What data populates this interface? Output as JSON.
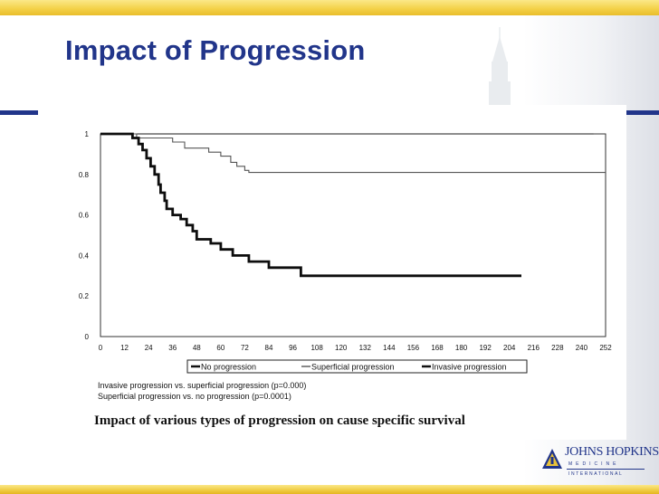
{
  "slide": {
    "title": "Impact of Progression",
    "caption": "Impact of various types of progression on cause specific survival",
    "notes": [
      "Invasive progression vs. superficial progression (p=0.000)",
      "Superficial progression vs. no progression (p=0.0001)"
    ],
    "logo": {
      "name": "JOHNS HOPKINS",
      "sub1": "MEDICINE",
      "sub2": "INTERNATIONAL"
    },
    "colors": {
      "title": "#21358a",
      "band": "#f4d24a",
      "rule": "#21358a"
    }
  },
  "chart_data": {
    "type": "line",
    "step": true,
    "title": "",
    "xlabel": "",
    "ylabel": "",
    "xlim": [
      0,
      252
    ],
    "ylim": [
      0,
      1
    ],
    "x_ticks": [
      0,
      12,
      24,
      36,
      48,
      60,
      72,
      84,
      96,
      108,
      120,
      132,
      144,
      156,
      168,
      180,
      192,
      204,
      216,
      228,
      240,
      252
    ],
    "y_ticks": [
      0,
      0.2,
      0.4,
      0.6,
      0.8,
      1
    ],
    "y_tick_labels": [
      "0",
      "0.2",
      "0.4",
      "0.6",
      "0.8",
      "1"
    ],
    "grid": false,
    "legend_position": "bottom",
    "legend": [
      "No progression",
      "Superficial progression",
      "Invasive progression"
    ],
    "series": [
      {
        "name": "No progression",
        "style": "thin",
        "points": [
          [
            0,
            1
          ],
          [
            246,
            1
          ]
        ]
      },
      {
        "name": "Superficial progression",
        "style": "thin",
        "points": [
          [
            0,
            1
          ],
          [
            18,
            1
          ],
          [
            18,
            0.98
          ],
          [
            36,
            0.98
          ],
          [
            36,
            0.96
          ],
          [
            42,
            0.96
          ],
          [
            42,
            0.93
          ],
          [
            54,
            0.93
          ],
          [
            54,
            0.91
          ],
          [
            60,
            0.91
          ],
          [
            60,
            0.89
          ],
          [
            65,
            0.89
          ],
          [
            65,
            0.86
          ],
          [
            68,
            0.86
          ],
          [
            68,
            0.84
          ],
          [
            72,
            0.84
          ],
          [
            72,
            0.82
          ],
          [
            74,
            0.82
          ],
          [
            74,
            0.81
          ],
          [
            252,
            0.81
          ]
        ]
      },
      {
        "name": "Invasive progression",
        "style": "thick",
        "points": [
          [
            0,
            1
          ],
          [
            16,
            1
          ],
          [
            16,
            0.98
          ],
          [
            19,
            0.98
          ],
          [
            19,
            0.95
          ],
          [
            21,
            0.95
          ],
          [
            21,
            0.92
          ],
          [
            23,
            0.92
          ],
          [
            23,
            0.88
          ],
          [
            25,
            0.88
          ],
          [
            25,
            0.84
          ],
          [
            27,
            0.84
          ],
          [
            27,
            0.8
          ],
          [
            29,
            0.8
          ],
          [
            29,
            0.75
          ],
          [
            30,
            0.75
          ],
          [
            30,
            0.71
          ],
          [
            32,
            0.71
          ],
          [
            32,
            0.67
          ],
          [
            33,
            0.67
          ],
          [
            33,
            0.63
          ],
          [
            36,
            0.63
          ],
          [
            36,
            0.6
          ],
          [
            40,
            0.6
          ],
          [
            40,
            0.58
          ],
          [
            43,
            0.58
          ],
          [
            43,
            0.55
          ],
          [
            46,
            0.55
          ],
          [
            46,
            0.52
          ],
          [
            48,
            0.52
          ],
          [
            48,
            0.48
          ],
          [
            55,
            0.48
          ],
          [
            55,
            0.46
          ],
          [
            60,
            0.46
          ],
          [
            60,
            0.43
          ],
          [
            66,
            0.43
          ],
          [
            66,
            0.4
          ],
          [
            74,
            0.4
          ],
          [
            74,
            0.37
          ],
          [
            84,
            0.37
          ],
          [
            84,
            0.34
          ],
          [
            100,
            0.34
          ],
          [
            100,
            0.3
          ],
          [
            210,
            0.3
          ]
        ]
      }
    ]
  }
}
